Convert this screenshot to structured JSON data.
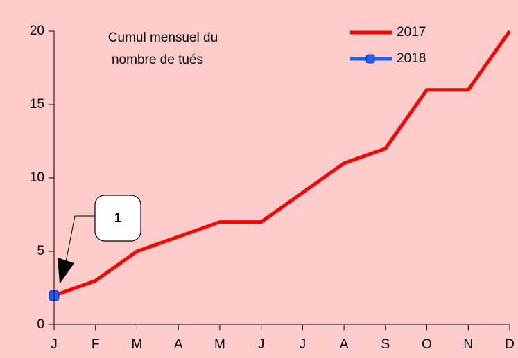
{
  "chart_data": {
    "type": "line",
    "title": [
      "Cumul mensuel du",
      "nombre de tués"
    ],
    "categories": [
      "J",
      "F",
      "M",
      "A",
      "M",
      "J",
      "J",
      "A",
      "S",
      "O",
      "N",
      "D"
    ],
    "series": [
      {
        "name": "2017",
        "color": "#ff0000",
        "values": [
          2,
          3,
          5,
          6,
          7,
          7,
          9,
          11,
          12,
          16,
          16,
          20
        ]
      },
      {
        "name": "2018",
        "color": "#1f5fff",
        "values": [
          2,
          null,
          null,
          null,
          null,
          null,
          null,
          null,
          null,
          null,
          null,
          null
        ]
      }
    ],
    "ylim": [
      0,
      20
    ],
    "yticks": [
      0,
      5,
      10,
      15,
      20
    ],
    "legend": "upper right",
    "annotations": [
      {
        "text": "1"
      }
    ]
  }
}
